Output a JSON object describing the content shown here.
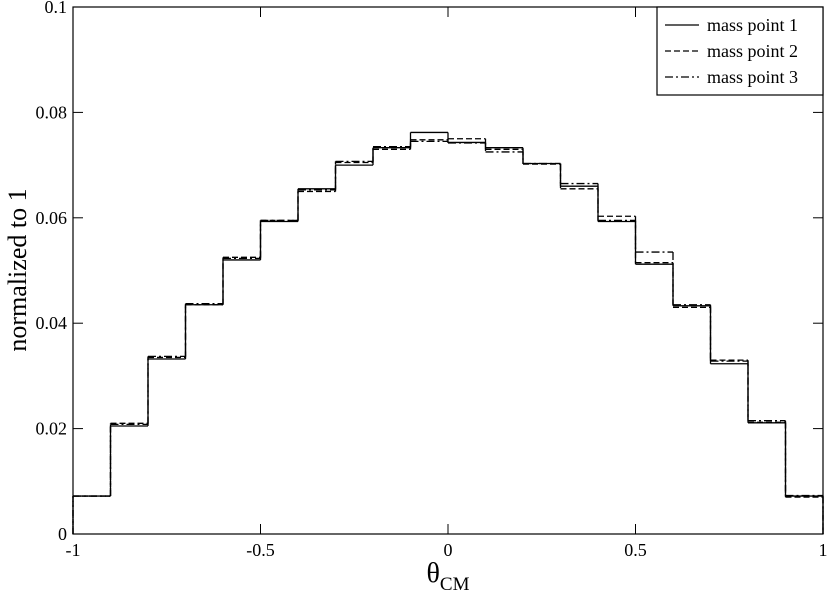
{
  "chart_data": {
    "type": "step-histogram",
    "xlabel": "θ",
    "xlabel_sub": "CM",
    "ylabel": "normalized to 1",
    "bins": [
      -1,
      -0.9,
      -0.8,
      -0.7,
      -0.6,
      -0.5,
      -0.4,
      -0.3,
      -0.2,
      -0.1,
      0,
      0.1,
      0.2,
      0.3,
      0.4,
      0.5,
      0.6,
      0.7,
      0.8,
      0.9,
      1
    ],
    "series": [
      {
        "name": "mass point 1",
        "color": "#000000",
        "linestyle": "solid",
        "values": [
          0.0072,
          0.0205,
          0.0332,
          0.0435,
          0.052,
          0.0593,
          0.0655,
          0.07,
          0.0733,
          0.0762,
          0.0743,
          0.0733,
          0.0703,
          0.066,
          0.0593,
          0.0512,
          0.0433,
          0.0323,
          0.0211,
          0.0072
        ]
      },
      {
        "name": "mass point 2",
        "color": "#000000",
        "linestyle": "dashed",
        "values": [
          0.0072,
          0.021,
          0.0335,
          0.0435,
          0.0525,
          0.0595,
          0.065,
          0.0705,
          0.073,
          0.0748,
          0.075,
          0.073,
          0.0702,
          0.0655,
          0.0603,
          0.0515,
          0.043,
          0.033,
          0.0212,
          0.007
        ]
      },
      {
        "name": "mass point 3",
        "color": "#000000",
        "linestyle": "dashdot",
        "values": [
          0.0072,
          0.0208,
          0.0337,
          0.0437,
          0.0523,
          0.0595,
          0.0653,
          0.0707,
          0.0735,
          0.0745,
          0.0742,
          0.0725,
          0.0703,
          0.0665,
          0.0595,
          0.0535,
          0.0435,
          0.0328,
          0.0215,
          0.0073
        ]
      }
    ],
    "xlim": [
      -1,
      1
    ],
    "xticks": [
      -1,
      -0.5,
      0,
      0.5,
      1
    ],
    "ylim": [
      0,
      0.1
    ],
    "yticks": [
      0,
      0.02,
      0.04,
      0.06,
      0.08,
      0.1
    ],
    "grid": false,
    "legend": "top-right"
  }
}
